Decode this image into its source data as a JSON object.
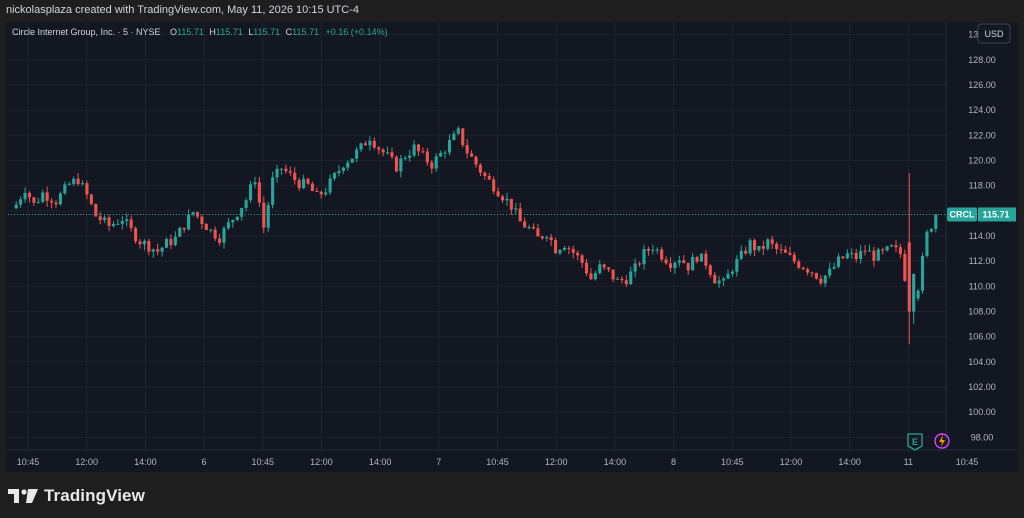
{
  "header": {
    "caption": "nickolasplaza created with TradingView.com, May 11, 2026 10:15 UTC-4"
  },
  "legend": {
    "symbol": "Circle Internet Group, Inc. · 5 · NYSE",
    "o_label": "O",
    "o_value": "115.71",
    "h_label": "H",
    "h_value": "115.71",
    "l_label": "L",
    "l_value": "115.71",
    "c_label": "C",
    "c_value": "115.71",
    "change": "+0.16 (+0.14%)"
  },
  "currency_button": "USD",
  "price_tag": {
    "ticker": "CRCL",
    "value": "115.71"
  },
  "event_badges": {
    "earnings": "E"
  },
  "footer": {
    "brand": "TradingView"
  },
  "colors": {
    "up": "#26a69a",
    "down": "#ef5350",
    "background": "#131722",
    "grid": "#1f2330",
    "axis_text": "#b2b5be"
  },
  "chart_data": {
    "type": "candlestick",
    "y_ticks": [
      "130.00",
      "128.00",
      "126.00",
      "124.00",
      "122.00",
      "120.00",
      "118.00",
      "116.00",
      "114.00",
      "112.00",
      "110.00",
      "108.00",
      "106.00",
      "104.00",
      "102.00",
      "100.00",
      "98.00"
    ],
    "ylim": [
      97,
      131
    ],
    "x_ticks": [
      "10:45",
      "12:00",
      "14:00",
      "6",
      "10:45",
      "12:00",
      "14:00",
      "7",
      "10:45",
      "12:00",
      "14:00",
      "8",
      "10:45",
      "12:00",
      "14:00",
      "11",
      "10:45"
    ],
    "last_price": 115.71,
    "series": [
      {
        "name": "CRCL",
        "close_path": [
          [
            0,
            116.5
          ],
          [
            2,
            117.8
          ],
          [
            4,
            116.5
          ],
          [
            6,
            117.4
          ],
          [
            9,
            116.8
          ],
          [
            12,
            118.1
          ],
          [
            14,
            118.5
          ],
          [
            16,
            117.2
          ],
          [
            18,
            115.6
          ],
          [
            21,
            114.8
          ],
          [
            24,
            115.4
          ],
          [
            26,
            114.4
          ],
          [
            28,
            113.6
          ],
          [
            30,
            113.2
          ],
          [
            32,
            112.8
          ],
          [
            34,
            113.4
          ],
          [
            36,
            113.8
          ],
          [
            38,
            114.9
          ],
          [
            40,
            115.9
          ],
          [
            42,
            115.2
          ],
          [
            44,
            114.4
          ],
          [
            46,
            113.9
          ],
          [
            48,
            114.9
          ],
          [
            50,
            115.9
          ],
          [
            52,
            116.9
          ],
          [
            54,
            118.6
          ],
          [
            56,
            114.7
          ],
          [
            58,
            118.4
          ],
          [
            60,
            119.4
          ],
          [
            62,
            118.8
          ],
          [
            64,
            118.2
          ],
          [
            66,
            118.0
          ],
          [
            68,
            117.1
          ],
          [
            70,
            117.7
          ],
          [
            72,
            118.7
          ],
          [
            74,
            119.8
          ],
          [
            76,
            120.3
          ],
          [
            78,
            121.0
          ],
          [
            80,
            121.9
          ],
          [
            82,
            121.0
          ],
          [
            84,
            120.3
          ],
          [
            86,
            119.5
          ],
          [
            88,
            120.4
          ],
          [
            90,
            121.0
          ],
          [
            92,
            120.3
          ],
          [
            94,
            119.7
          ],
          [
            96,
            120.5
          ],
          [
            98,
            121.4
          ],
          [
            100,
            122.2
          ],
          [
            102,
            120.7
          ],
          [
            104,
            119.7
          ],
          [
            106,
            118.7
          ],
          [
            108,
            118.0
          ],
          [
            110,
            117.2
          ],
          [
            112,
            116.4
          ],
          [
            114,
            115.1
          ],
          [
            116,
            114.6
          ],
          [
            118,
            113.8
          ],
          [
            120,
            114.3
          ],
          [
            122,
            113.0
          ],
          [
            124,
            113.4
          ],
          [
            126,
            112.7
          ],
          [
            128,
            111.9
          ],
          [
            130,
            110.6
          ],
          [
            132,
            111.5
          ],
          [
            134,
            111.1
          ],
          [
            136,
            110.4
          ],
          [
            138,
            110.6
          ],
          [
            140,
            111.4
          ],
          [
            142,
            112.6
          ],
          [
            144,
            113.2
          ],
          [
            146,
            112.5
          ],
          [
            148,
            111.9
          ],
          [
            150,
            112.3
          ],
          [
            152,
            111.6
          ],
          [
            154,
            112.4
          ],
          [
            156,
            111.9
          ],
          [
            158,
            110.6
          ],
          [
            160,
            110.2
          ],
          [
            162,
            111.5
          ],
          [
            164,
            112.4
          ],
          [
            166,
            113.4
          ],
          [
            168,
            112.8
          ],
          [
            170,
            113.5
          ],
          [
            172,
            112.9
          ],
          [
            174,
            112.5
          ],
          [
            176,
            112.0
          ],
          [
            178,
            111.6
          ],
          [
            180,
            111.2
          ],
          [
            182,
            110.6
          ],
          [
            184,
            111.1
          ],
          [
            186,
            112.0
          ],
          [
            188,
            112.5
          ],
          [
            190,
            112.3
          ],
          [
            192,
            112.9
          ],
          [
            194,
            112.4
          ],
          [
            196,
            112.6
          ],
          [
            198,
            113.0
          ],
          [
            200,
            112.6
          ],
          [
            202,
            109.0
          ],
          [
            204,
            110.0
          ],
          [
            206,
            114.1
          ],
          [
            208,
            115.71
          ]
        ]
      }
    ],
    "price_line": 115.71,
    "event_marks": [
      "earnings",
      "dividend"
    ]
  }
}
